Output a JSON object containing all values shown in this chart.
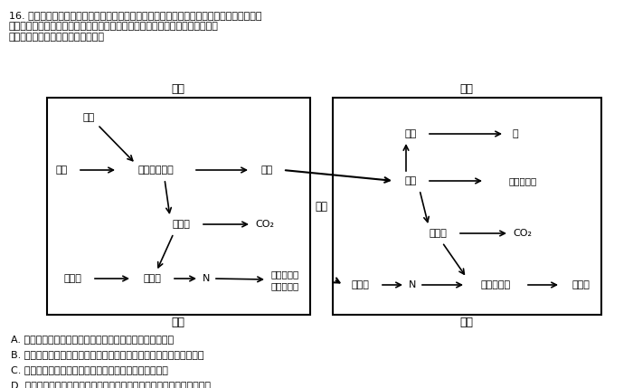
{
  "title_line1": "16. 幼苗在依靠自己的光合产物生存之前，依赖于种子中贮藏的有机物。这些有机物在胚乳或",
  "title_line2": "子叶中以分解分化合物并运输到胚和胚芽中被利用。如图表示幼苗发芽有机物的",
  "title_line3": "转化及运输过程。下列说法正确的是",
  "seed_label": "种子",
  "seedling_label": "幼苗",
  "decomp_label": "分解",
  "rebuild_label": "重建",
  "transport_label": "运输",
  "left_fat": "脂肪",
  "left_starch": "淀粉",
  "left_glucose": "葡萄糖等糖类",
  "left_sucrose": "蔗糖",
  "left_org_acid": "有机酸",
  "left_co2": "CO₂",
  "left_protein": "蛋白质",
  "left_amino": "氨基酸",
  "left_N": "N",
  "left_amide1": "酰胺等氨素",
  "left_amide2": "运输化合物",
  "right_lipid": "脂质",
  "right_mem": "膜",
  "right_sugar": "糖类",
  "right_cellwall": "细胞壁物质",
  "right_org_acid": "有机酸",
  "right_co2": "CO₂",
  "right_amide": "酰胺等",
  "right_N": "N",
  "right_new_amino": "新的氨基酸",
  "right_protein": "蛋白质",
  "answer_A": "A. 图中糖类产生的有机酸包括丙酮酸等呼吸作用的中间产物",
  "answer_B": "B. 种子中脂肪能转化为糖类，幼苗中糖类再重新转化成脂肪构成膜结构",
  "answer_C": "C. 种子中蛋白质的种类与幼苗期蛋白质的种类会存在差异",
  "answer_D": "D. 种子中物质的分解及幼苗期物质的重建过程中都会进行有机物间的转化",
  "bg_color": "#ffffff"
}
